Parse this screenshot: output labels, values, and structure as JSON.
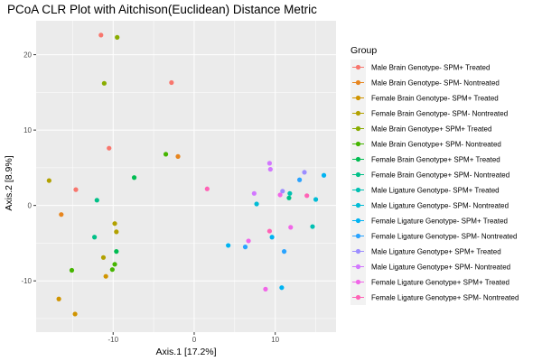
{
  "chart_data": {
    "type": "scatter",
    "title": "PCoA CLR Plot with Aitchison(Euclidean) Distance Metric",
    "xlabel": "Axis.1   [17.2%]",
    "ylabel": "Axis.2   [8.9%]",
    "xlim": [
      -19.5,
      17.5
    ],
    "ylim": [
      -16.8,
      24.5
    ],
    "xticks": [
      -10,
      0,
      10
    ],
    "yticks": [
      -10,
      0,
      10,
      20
    ],
    "grid": true,
    "legend_title": "Group",
    "legend_position": "right",
    "series": [
      {
        "name": "Male Brain Genotype- SPM+ Treated",
        "color": "#F8766D",
        "points": [
          [
            -11.5,
            22.6
          ],
          [
            -2.8,
            16.3
          ],
          [
            -10.5,
            7.6
          ],
          [
            -14.6,
            2.1
          ]
        ]
      },
      {
        "name": "Male Brain Genotype- SPM- Nontreated",
        "color": "#E7851E",
        "points": [
          [
            -2.0,
            6.5
          ],
          [
            -16.4,
            -1.2
          ]
        ]
      },
      {
        "name": "Female Brain Genotype- SPM+ Treated",
        "color": "#D09400",
        "points": [
          [
            -16.7,
            -12.4
          ],
          [
            -14.7,
            -14.4
          ],
          [
            -10.9,
            -9.4
          ]
        ]
      },
      {
        "name": "Female Brain Genotype- SPM- Nontreated",
        "color": "#B2A100",
        "points": [
          [
            -17.9,
            3.3
          ],
          [
            -9.8,
            -2.4
          ],
          [
            -9.6,
            -3.5
          ],
          [
            -11.2,
            -6.9
          ]
        ]
      },
      {
        "name": "Male Brain Genotype+ SPM+ Treated",
        "color": "#89AC00",
        "points": [
          [
            -11.1,
            16.2
          ],
          [
            -9.5,
            22.3
          ]
        ]
      },
      {
        "name": "Male Brain Genotype+ SPM- Nontreated",
        "color": "#45B500",
        "points": [
          [
            -3.5,
            6.8
          ],
          [
            -15.1,
            -8.6
          ],
          [
            -9.8,
            -7.8
          ],
          [
            -10.1,
            -8.5
          ]
        ]
      },
      {
        "name": "Female Brain Genotype+ SPM+ Treated",
        "color": "#00BC51",
        "points": [
          [
            -7.4,
            3.7
          ],
          [
            -9.6,
            -6.1
          ]
        ]
      },
      {
        "name": "Female Brain Genotype+ SPM- Nontreated",
        "color": "#00C087",
        "points": [
          [
            -12.0,
            0.7
          ],
          [
            -12.3,
            -4.2
          ],
          [
            11.7,
            1.0
          ]
        ]
      },
      {
        "name": "Male Ligature Genotype- SPM+ Treated",
        "color": "#00C0B2",
        "points": [
          [
            11.8,
            1.6
          ],
          [
            14.6,
            -2.8
          ]
        ]
      },
      {
        "name": "Male Ligature Genotype- SPM- Nontreated",
        "color": "#00BCD6",
        "points": [
          [
            7.7,
            0.2
          ],
          [
            15.0,
            0.8
          ]
        ]
      },
      {
        "name": "Female Ligature Genotype- SPM+ Treated",
        "color": "#00B3F2",
        "points": [
          [
            16.0,
            4.0
          ],
          [
            4.2,
            -5.3
          ],
          [
            9.6,
            -4.2
          ],
          [
            10.8,
            -10.9
          ]
        ]
      },
      {
        "name": "Female Ligature Genotype- SPM- Nontreated",
        "color": "#29A3FF",
        "points": [
          [
            13.0,
            3.4
          ],
          [
            6.3,
            -5.5
          ],
          [
            11.1,
            -6.1
          ]
        ]
      },
      {
        "name": "Male Ligature Genotype+ SPM+ Treated",
        "color": "#9C8DFF",
        "points": [
          [
            13.6,
            4.4
          ],
          [
            10.9,
            1.9
          ]
        ]
      },
      {
        "name": "Male Ligature Genotype+ SPM- Nontreated",
        "color": "#D277FF",
        "points": [
          [
            9.3,
            5.6
          ],
          [
            9.4,
            4.8
          ],
          [
            7.4,
            1.6
          ]
        ]
      },
      {
        "name": "Female Ligature Genotype+ SPM+ Treated",
        "color": "#F166E8",
        "points": [
          [
            10.6,
            1.4
          ],
          [
            11.9,
            -2.9
          ],
          [
            6.7,
            -4.7
          ],
          [
            8.8,
            -11.1
          ]
        ]
      },
      {
        "name": "Female Ligature Genotype+ SPM- Nontreated",
        "color": "#FF63B6",
        "points": [
          [
            1.6,
            2.2
          ],
          [
            13.9,
            1.3
          ],
          [
            9.3,
            -3.4
          ]
        ]
      }
    ]
  }
}
